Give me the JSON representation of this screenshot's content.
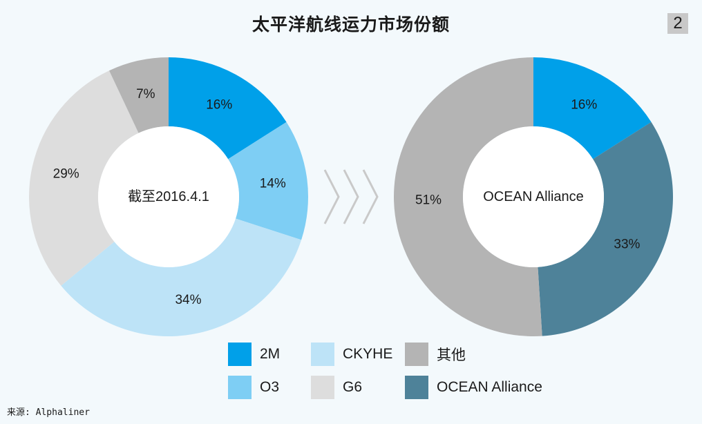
{
  "title": "太平洋航线运力市场份额",
  "page_number": "2",
  "source": "来源: Alphaliner",
  "chart_data": [
    {
      "type": "pie",
      "center_label": "截至2016.4.1",
      "slices": [
        {
          "name": "2M",
          "value": 16,
          "label": "16%",
          "color": "#00a0e9"
        },
        {
          "name": "O3",
          "value": 14,
          "label": "14%",
          "color": "#7ecef4"
        },
        {
          "name": "CKYHE",
          "value": 34,
          "label": "34%",
          "color": "#bde3f7"
        },
        {
          "name": "G6",
          "value": 29,
          "label": "29%",
          "color": "#dddddd"
        },
        {
          "name": "其他",
          "value": 7,
          "label": "7%",
          "color": "#b4b4b4"
        }
      ]
    },
    {
      "type": "pie",
      "center_label": "OCEAN Alliance",
      "slices": [
        {
          "name": "2M",
          "value": 16,
          "label": "16%",
          "color": "#00a0e9"
        },
        {
          "name": "OCEAN Alliance",
          "value": 33,
          "label": "33%",
          "color": "#4e8299"
        },
        {
          "name": "其他",
          "value": 51,
          "label": "51%",
          "color": "#b4b4b4"
        }
      ]
    }
  ],
  "legend": [
    {
      "label": "2M",
      "color": "#00a0e9"
    },
    {
      "label": "CKYHE",
      "color": "#bde3f7"
    },
    {
      "label": "其他",
      "color": "#b4b4b4"
    },
    {
      "label": "O3",
      "color": "#7ecef4"
    },
    {
      "label": "G6",
      "color": "#dddddd"
    },
    {
      "label": "OCEAN Alliance",
      "color": "#4e8299"
    }
  ],
  "arrow_icon": "chevron-right-icon"
}
